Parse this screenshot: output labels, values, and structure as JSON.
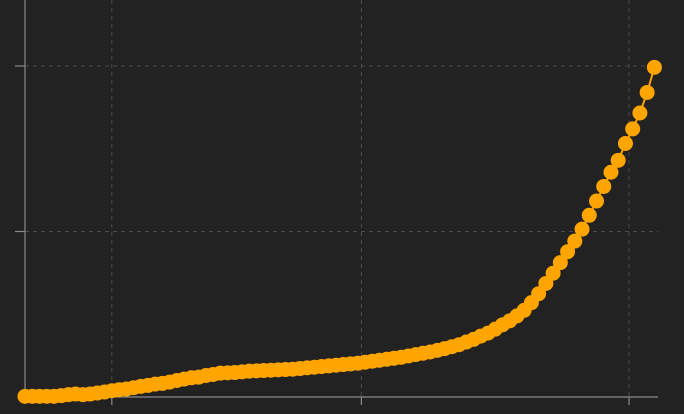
{
  "chart_data": {
    "type": "line",
    "title": "",
    "xlabel": "",
    "ylabel": "",
    "xlim": [
      0,
      87.5
    ],
    "ylim": [
      0,
      100
    ],
    "grid": true,
    "marker": "circle",
    "x_ticks": [
      12,
      46.5,
      83.5
    ],
    "y_ticks": [
      50,
      100
    ],
    "x_tick_labels": [],
    "y_tick_labels": [],
    "colors": {
      "background": "#222222",
      "series": "#FFA500",
      "grid": "#4a4a4a",
      "axis": "#8a8a8a"
    },
    "series": [
      {
        "name": "",
        "x": [
          0,
          1,
          2,
          3,
          4,
          5,
          6,
          7,
          8,
          9,
          10,
          11,
          12,
          13,
          14,
          15,
          16,
          17,
          18,
          19,
          20,
          21,
          22,
          23,
          24,
          25,
          26,
          27,
          28,
          29,
          30,
          31,
          32,
          33,
          34,
          35,
          36,
          37,
          38,
          39,
          40,
          41,
          42,
          43,
          44,
          45,
          46,
          47,
          48,
          49,
          50,
          51,
          52,
          53,
          54,
          55,
          56,
          57,
          58,
          59,
          60,
          61,
          62,
          63,
          64,
          65,
          66,
          67,
          68,
          69,
          70,
          71,
          72,
          73,
          74,
          75,
          76,
          77,
          78,
          79,
          80,
          81,
          82,
          83,
          84,
          85,
          86,
          87
        ],
        "y": [
          0.2,
          0.2,
          0.2,
          0.2,
          0.2,
          0.4,
          0.7,
          0.9,
          0.7,
          0.9,
          1.2,
          1.5,
          1.9,
          2.2,
          2.4,
          2.8,
          3.2,
          3.5,
          3.9,
          4.1,
          4.5,
          5.0,
          5.4,
          5.8,
          6.0,
          6.5,
          6.8,
          7.2,
          7.3,
          7.4,
          7.6,
          7.8,
          7.9,
          8.0,
          8.1,
          8.2,
          8.3,
          8.4,
          8.6,
          8.8,
          9.0,
          9.2,
          9.4,
          9.6,
          9.8,
          10.0,
          10.2,
          10.5,
          10.8,
          11.1,
          11.4,
          11.7,
          12.0,
          12.4,
          12.8,
          13.2,
          13.6,
          14.1,
          14.6,
          15.2,
          15.8,
          16.6,
          17.4,
          18.4,
          19.3,
          20.5,
          21.8,
          23.0,
          24.5,
          26.2,
          28.5,
          31.2,
          34.3,
          37.4,
          40.6,
          43.9,
          47.1,
          50.7,
          54.9,
          59.2,
          63.6,
          67.9,
          71.5,
          76.6,
          81.0,
          85.8,
          92.0,
          99.6
        ]
      }
    ]
  }
}
